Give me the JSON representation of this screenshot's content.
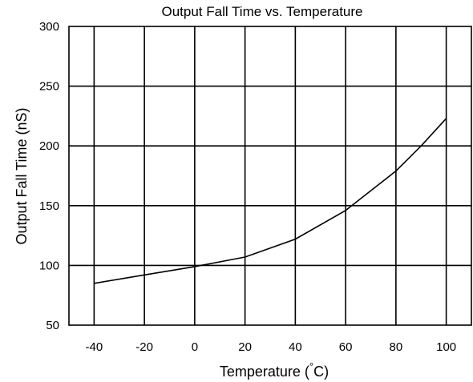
{
  "chart_data": {
    "type": "line",
    "title": "Output Fall Time vs. Temperature",
    "xlabel": "Temperature (",
    "xlabel_degree": "°",
    "xlabel_unit": "C)",
    "ylabel": "Output Fall Time (nS)",
    "xlim": [
      -50,
      110
    ],
    "ylim": [
      50,
      300
    ],
    "x_ticks": [
      -40,
      -20,
      0,
      20,
      40,
      60,
      80,
      100
    ],
    "x_tick_labels": [
      "-40",
      "-20",
      "0",
      "20",
      "40",
      "60",
      "80",
      "100"
    ],
    "y_ticks": [
      50,
      100,
      150,
      200,
      250,
      300
    ],
    "y_tick_labels": [
      "50",
      "100",
      "150",
      "200",
      "250",
      "300"
    ],
    "grid": true,
    "legend": "none",
    "series": [
      {
        "x": [
          -40,
          -20,
          0,
          20,
          40,
          60,
          80,
          90,
          100
        ],
        "y": [
          85,
          92,
          99,
          107,
          122,
          146,
          179,
          200,
          223
        ],
        "color": "#000000"
      }
    ]
  }
}
